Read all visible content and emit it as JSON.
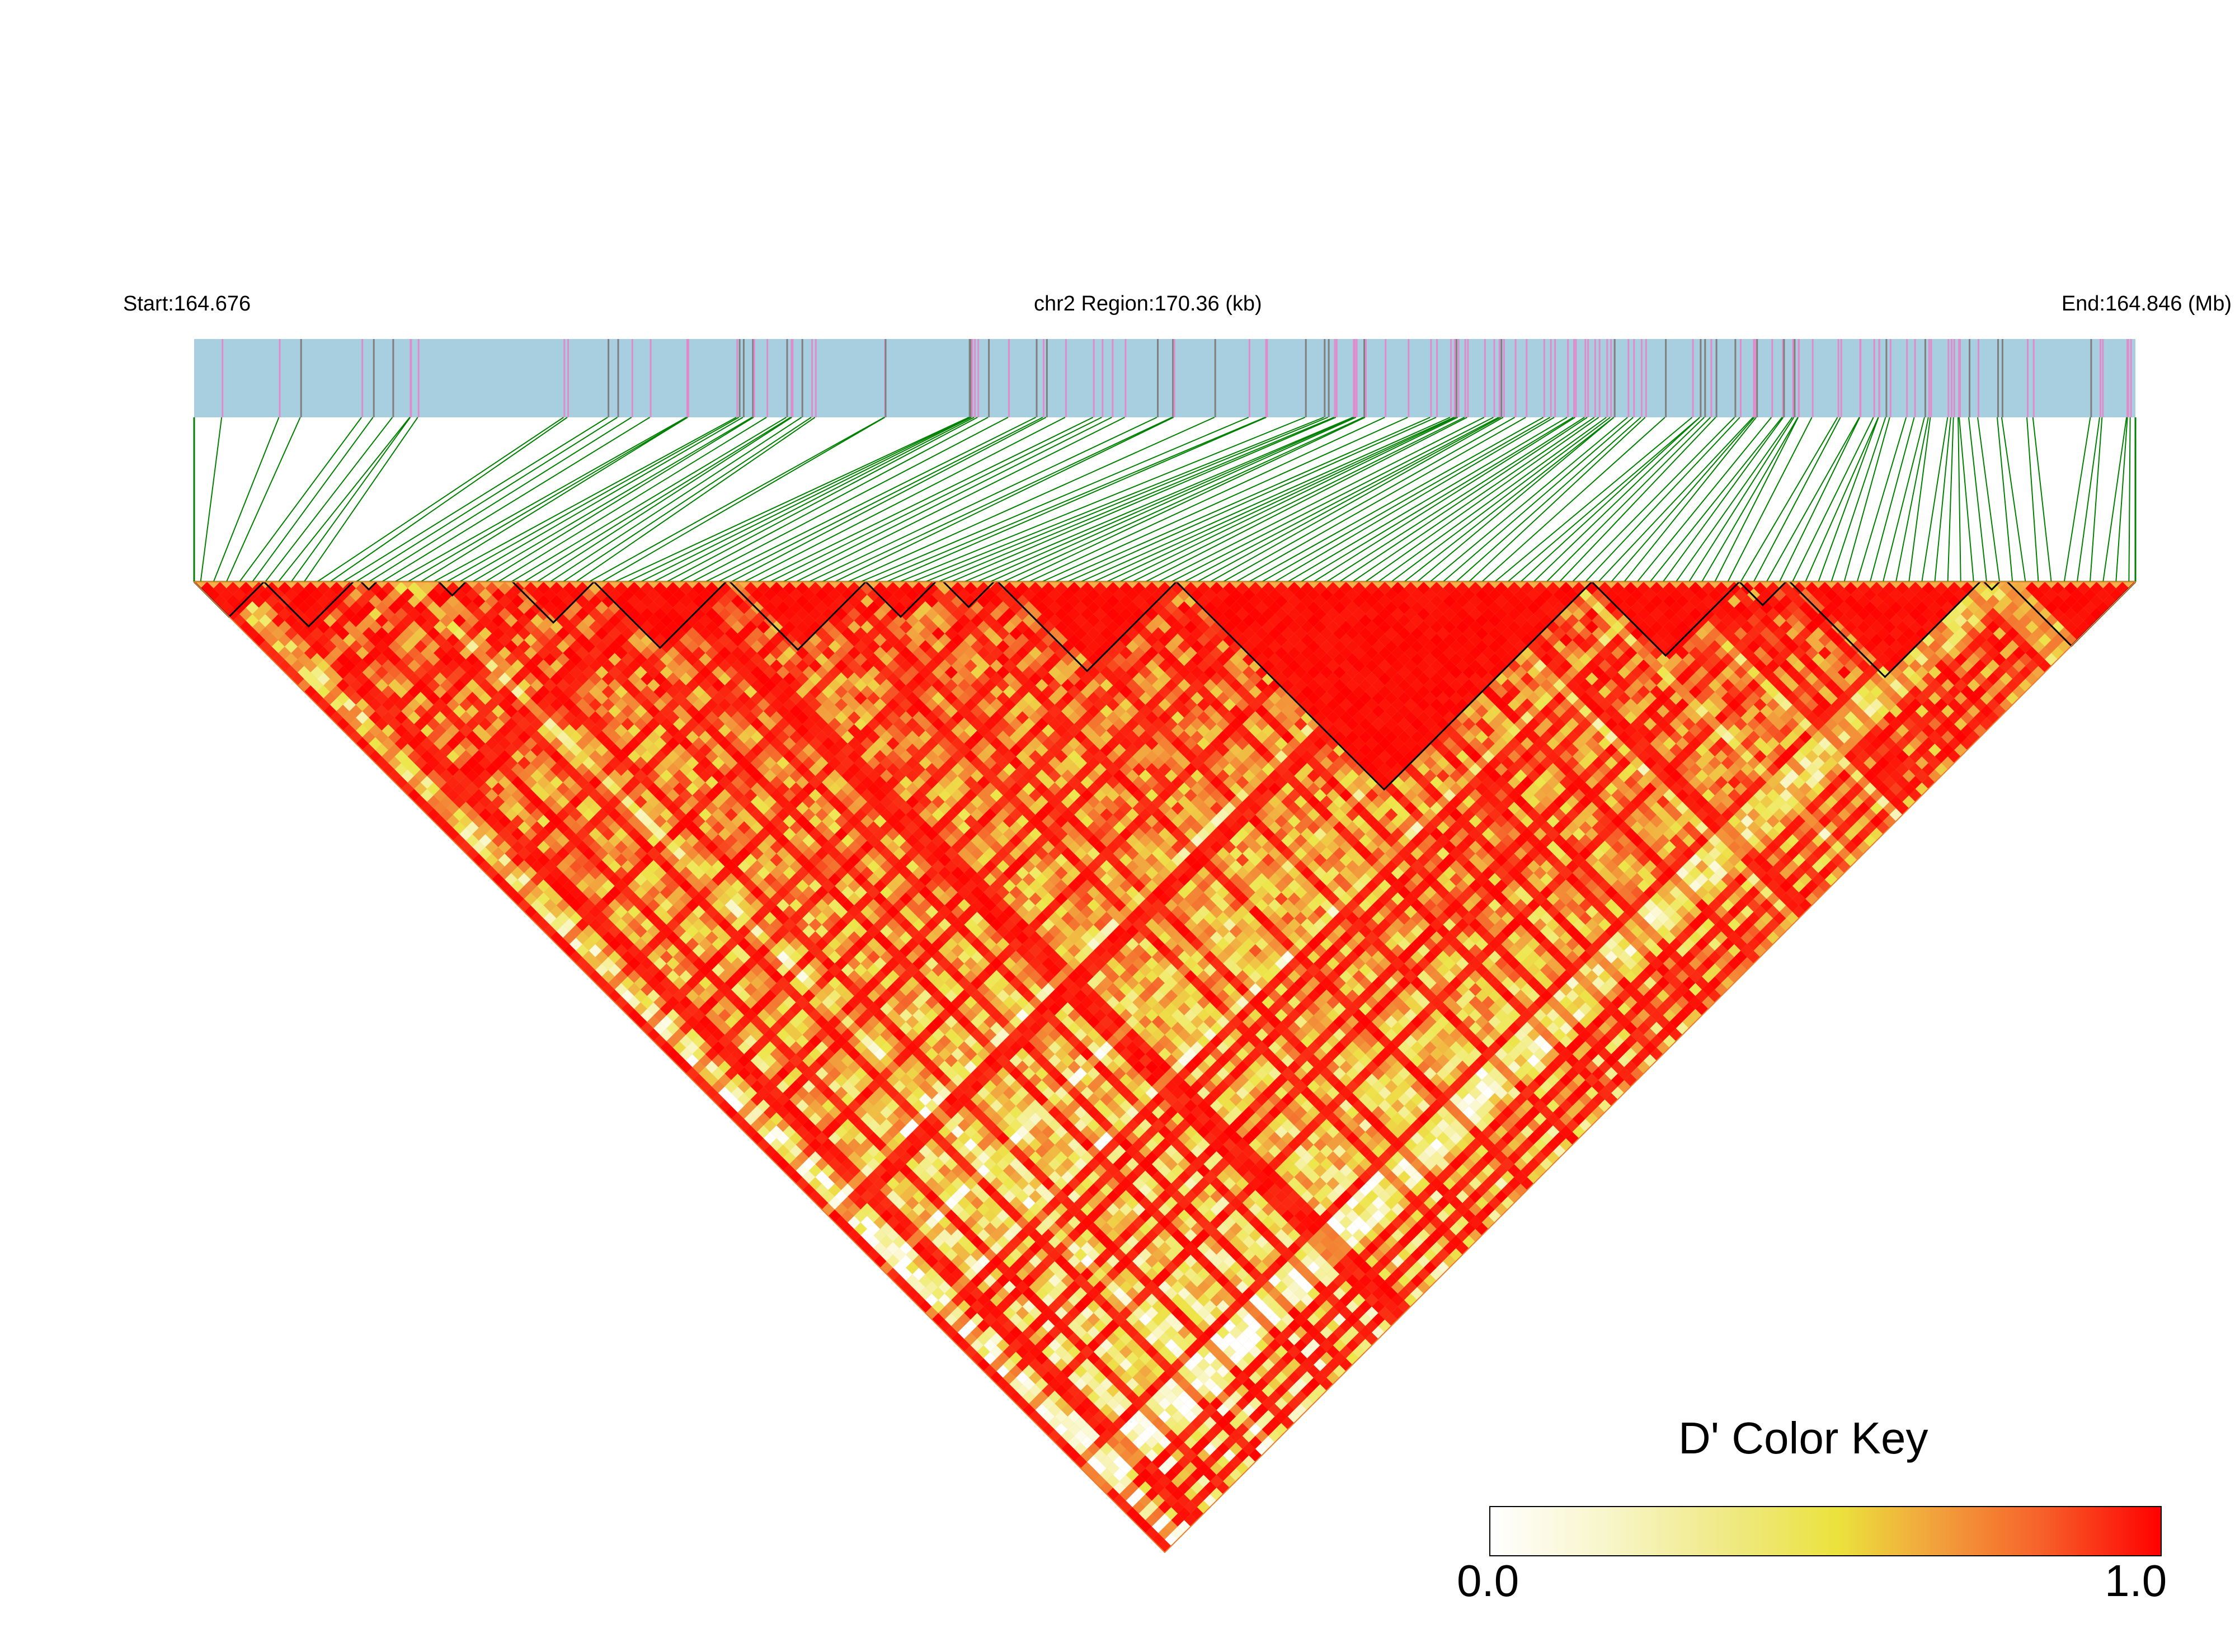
{
  "header": {
    "start_label": "Start:164.676",
    "region_label": "chr2 Region:170.36 (kb)",
    "end_label": "End:164.846 (Mb)"
  },
  "color_key": {
    "title": "D' Color Key",
    "min_label": "0.0",
    "max_label": "1.0",
    "stops": [
      "#ffffff",
      "#f7f3b0",
      "#ede64a",
      "#f2a640",
      "#f5632a",
      "#ff0000"
    ]
  },
  "colors": {
    "gene_track_background": "#a8cfe0",
    "snp_mark_pink": "#e08ccc",
    "snp_mark_grey": "#7f7f7f",
    "connector_lines": "#008000",
    "ld_high": "#ff0000",
    "block_outline": "#000000"
  },
  "chart_data": {
    "type": "heatmap",
    "title": "",
    "metric": "D'",
    "chromosome": "chr2",
    "region_start_mb": 164.676,
    "region_end_mb": 164.846,
    "region_length_kb": 170.36,
    "value_range": [
      0.0,
      1.0
    ],
    "snp_count_approx": 400,
    "haplotype_blocks_pct_of_region": [
      [
        0.0,
        3.6
      ],
      [
        3.6,
        8.2
      ],
      [
        8.6,
        9.4
      ],
      [
        12.6,
        14.0
      ],
      [
        16.4,
        20.6
      ],
      [
        20.6,
        27.4
      ],
      [
        27.6,
        34.6
      ],
      [
        34.6,
        38.2
      ],
      [
        38.6,
        41.2
      ],
      [
        41.4,
        50.6
      ],
      [
        50.6,
        72.0
      ],
      [
        72.0,
        79.6
      ],
      [
        79.6,
        82.0
      ],
      [
        82.2,
        92.0
      ],
      [
        92.2,
        93.0
      ],
      [
        93.4,
        100.0
      ]
    ]
  }
}
